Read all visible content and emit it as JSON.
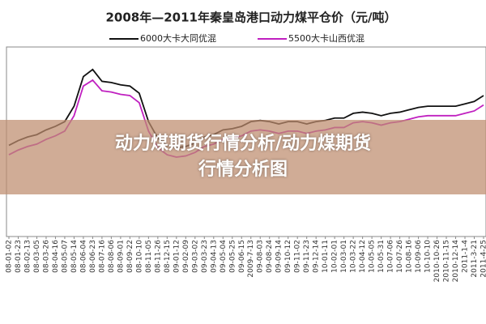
{
  "chart_data": {
    "type": "line",
    "title": "2008年—2011年秦皇岛港口动力煤平仓价（元/吨）",
    "categories": [
      "08-01-02",
      "08-01-23",
      "08-02-13",
      "08-03-05",
      "08-03-26",
      "08-04-16",
      "08-05-07",
      "08-05-14",
      "08-06-04",
      "08-06-23",
      "08-07-16",
      "08-08-06",
      "08-09-01",
      "08-09-22",
      "08-10-10",
      "08-11-05",
      "08-11-26",
      "08-12-15",
      "09-01-12",
      "09-02-09",
      "09-03-02",
      "09-03-23",
      "09-04-13",
      "09-05-04",
      "09-05-25",
      "09-06-15",
      "2009-7-13",
      "09-08-03",
      "09-08-24",
      "09-09-14",
      "09-10-12",
      "09-11-02",
      "09-11-23",
      "09-12-14",
      "10-01-11",
      "10-02-01",
      "10-03-01",
      "10-03-22",
      "10-04-12",
      "10-05-05",
      "10-05-31",
      "10-07-06",
      "10-07-26",
      "10-08-16",
      "10-09-06",
      "10-10-10",
      "2010-10-26",
      "2010-11-15",
      "2010-12-14",
      "2011-1-4",
      "2011-3-21",
      "2011-4-25"
    ],
    "series": [
      {
        "name": "6000大卡大同优混",
        "color": "#111111",
        "values": [
          685,
          705,
          720,
          730,
          750,
          765,
          785,
          850,
          975,
          1005,
          955,
          950,
          940,
          935,
          905,
          785,
          715,
          685,
          675,
          680,
          695,
          720,
          730,
          750,
          755,
          765,
          785,
          790,
          785,
          775,
          785,
          785,
          775,
          785,
          790,
          800,
          800,
          820,
          825,
          820,
          810,
          820,
          825,
          835,
          845,
          850,
          850,
          850,
          850,
          860,
          870,
          895
        ]
      },
      {
        "name": "5500大卡山西优混",
        "color": "#c020c0",
        "values": [
          645,
          665,
          680,
          690,
          710,
          725,
          745,
          810,
          935,
          960,
          915,
          910,
          900,
          895,
          865,
          745,
          675,
          645,
          635,
          640,
          655,
          680,
          690,
          710,
          715,
          725,
          745,
          750,
          745,
          735,
          745,
          745,
          735,
          745,
          750,
          760,
          760,
          780,
          785,
          780,
          770,
          780,
          785,
          795,
          805,
          810,
          810,
          810,
          810,
          820,
          830,
          855
        ]
      }
    ],
    "ylim": [
      300,
      1100
    ]
  },
  "banner": {
    "text": "动力煤期货行情分析/动力煤期货行情分析图"
  }
}
